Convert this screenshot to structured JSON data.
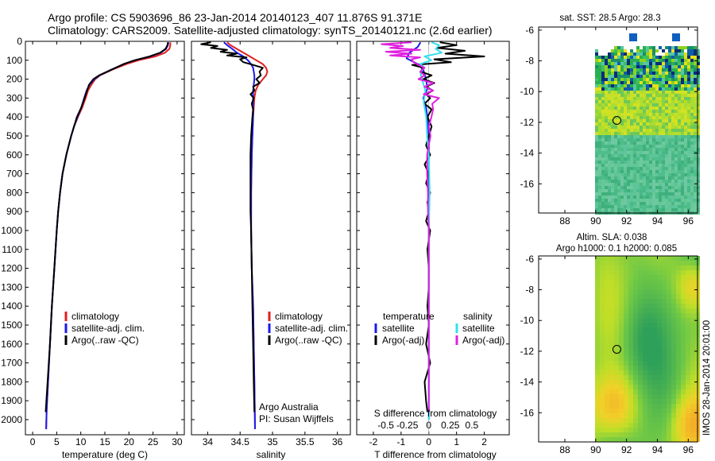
{
  "figure": {
    "title_line1": "Argo profile: CS 5903696_86 23-Jan-2014 20140123_407 11.876S 91.371E",
    "title_line2": "Climatology: CARS2009. Satellite-adjusted climatology: synTS_20140121.nc (2.6d earlier)",
    "side_stamp": "IMOS 28-Jan-2014 20:01:00"
  },
  "colors": {
    "climatology": "#e02020",
    "satellite": "#1a1aee",
    "argo": "#000000",
    "sat_salinity": "#33e0f0",
    "argo_salinity_adj": "#e020e0"
  },
  "depth_axis": {
    "ticks": [
      0,
      100,
      200,
      300,
      400,
      500,
      600,
      700,
      800,
      900,
      1000,
      1100,
      1200,
      1300,
      1400,
      1500,
      1600,
      1700,
      1800,
      1900,
      2000
    ],
    "ylim": [
      0,
      2080
    ]
  },
  "chart_data": [
    {
      "type": "line",
      "id": "temperature",
      "title": "",
      "xlabel": "temperature (deg C)",
      "ylabel": "",
      "xlim": [
        -1.5,
        31.5
      ],
      "ylim": [
        0,
        2080
      ],
      "x_ticks": [
        0,
        5,
        10,
        15,
        20,
        25,
        30
      ],
      "x_tick_labels": [
        "0",
        "5",
        "10",
        "15",
        "20",
        "25",
        "30"
      ],
      "legend": [
        "climatology",
        "satellite-adj. clim.",
        "Argo(..raw -QC)"
      ],
      "series": [
        {
          "name": "climatology",
          "color_key": "climatology",
          "depth": [
            5,
            20,
            40,
            60,
            80,
            100,
            120,
            150,
            180,
            200,
            230,
            260,
            300,
            350,
            400,
            450,
            500,
            600,
            700,
            800,
            900,
            1000,
            1200,
            1400,
            1600,
            1800,
            1950,
            2050
          ],
          "values": [
            28.6,
            28.6,
            28.4,
            27.5,
            25.5,
            22,
            19.5,
            16.5,
            14,
            13,
            12.2,
            11.5,
            11,
            10.3,
            9.4,
            8.6,
            8,
            7,
            6.2,
            5.7,
            5.3,
            5,
            4.5,
            4,
            3.6,
            3.2,
            2.9,
            2.8
          ]
        },
        {
          "name": "satellite-adj. clim.",
          "color_key": "satellite",
          "depth": [
            5,
            20,
            40,
            60,
            80,
            100,
            120,
            150,
            180,
            200,
            230,
            260,
            300,
            350,
            400,
            450,
            500,
            600,
            700,
            800,
            900,
            1000,
            1200,
            1400,
            1600,
            1800,
            1950,
            2050
          ],
          "values": [
            28.2,
            28.1,
            27.7,
            26.6,
            24.4,
            21.2,
            18.9,
            16.3,
            13.9,
            12.8,
            11.8,
            11.2,
            10.7,
            10.1,
            9.3,
            8.6,
            8,
            7,
            6.2,
            5.7,
            5.3,
            5,
            4.5,
            4,
            3.6,
            3.2,
            2.9,
            2.8
          ]
        },
        {
          "name": "Argo",
          "color_key": "argo",
          "depth": [
            5,
            20,
            40,
            60,
            80,
            100,
            120,
            150,
            180,
            200,
            230,
            260,
            300,
            350,
            400,
            450,
            500,
            600,
            700,
            800,
            900,
            1000,
            1200,
            1400,
            1600,
            1800,
            1960
          ],
          "values": [
            28.1,
            28,
            27.6,
            26.5,
            24.3,
            21.2,
            18.9,
            16.4,
            13.8,
            12.6,
            11.7,
            11.3,
            10.8,
            10.1,
            9.2,
            8.6,
            8,
            7,
            6.2,
            5.7,
            5.3,
            5,
            4.5,
            4,
            3.6,
            3.1,
            2.7
          ]
        }
      ]
    },
    {
      "type": "line",
      "id": "salinity",
      "title": "",
      "xlabel": "salinity",
      "ylabel": "",
      "xlim": [
        33.75,
        36.2
      ],
      "ylim": [
        0,
        2080
      ],
      "x_ticks": [
        34,
        34.5,
        35,
        35.5,
        36
      ],
      "x_tick_labels": [
        "34",
        "34.5",
        "35",
        "35.5",
        "36"
      ],
      "legend": [
        "climatology",
        "satellite-adj. clim.",
        "Argo(..raw -QC)"
      ],
      "annotation_line1": "Argo Australia",
      "annotation_line2": "PI: Susan Wijffels",
      "series": [
        {
          "name": "climatology",
          "color_key": "climatology",
          "depth": [
            5,
            20,
            40,
            60,
            80,
            100,
            120,
            140,
            160,
            180,
            200,
            230,
            260,
            300,
            350,
            400,
            500,
            600,
            800,
            1000,
            1200,
            1400,
            1600,
            1800,
            2050
          ],
          "values": [
            34.3,
            34.35,
            34.45,
            34.55,
            34.65,
            34.75,
            34.85,
            34.9,
            34.92,
            34.9,
            34.85,
            34.78,
            34.74,
            34.72,
            34.71,
            34.7,
            34.69,
            34.68,
            34.67,
            34.67,
            34.68,
            34.7,
            34.71,
            34.72,
            34.73
          ]
        },
        {
          "name": "satellite-adj. clim.",
          "color_key": "satellite",
          "depth": [
            5,
            20,
            40,
            60,
            80,
            100,
            120,
            140,
            160,
            180,
            200,
            230,
            260,
            300,
            350,
            400,
            500,
            600,
            800,
            1000,
            1200,
            1400,
            1600,
            1800,
            2050
          ],
          "values": [
            34.25,
            34.3,
            34.38,
            34.45,
            34.55,
            34.62,
            34.67,
            34.7,
            34.71,
            34.72,
            34.72,
            34.71,
            34.7,
            34.7,
            34.7,
            34.7,
            34.69,
            34.68,
            34.67,
            34.67,
            34.68,
            34.7,
            34.71,
            34.72,
            34.73
          ]
        },
        {
          "name": "Argo",
          "color_key": "argo",
          "depth": [
            5,
            15,
            25,
            35,
            45,
            55,
            65,
            75,
            85,
            95,
            110,
            125,
            140,
            160,
            180,
            200,
            220,
            240,
            260,
            280,
            300,
            330,
            360,
            400,
            450,
            500,
            600,
            700,
            800,
            900,
            1000,
            1200,
            1400,
            1600,
            1800,
            1960
          ],
          "values": [
            34.05,
            33.9,
            34.15,
            34.05,
            34.3,
            34.2,
            34.45,
            34.3,
            34.6,
            34.5,
            34.55,
            34.7,
            34.85,
            34.8,
            34.82,
            34.75,
            34.8,
            34.7,
            34.72,
            34.66,
            34.71,
            34.68,
            34.7,
            34.69,
            34.68,
            34.67,
            34.66,
            34.66,
            34.66,
            34.66,
            34.67,
            34.68,
            34.69,
            34.7,
            34.71,
            34.72
          ]
        }
      ]
    },
    {
      "type": "line",
      "id": "difference",
      "title": "",
      "xlabel": "T difference from climatology",
      "xlabel_top": "S difference from climatology",
      "ylabel": "",
      "xlim": [
        -2.6,
        2.9
      ],
      "ylim": [
        0,
        2080
      ],
      "x_ticks": [
        -2,
        -1,
        0,
        1,
        2
      ],
      "x_tick_labels": [
        "-2",
        "-1",
        "0",
        "1",
        "2"
      ],
      "s_ticks": [
        -0.5,
        -0.25,
        0,
        0.25,
        0.5
      ],
      "s_tick_labels": [
        "-0.5",
        "-0.25",
        "0",
        "0.25",
        "0.5"
      ],
      "legend_temperature_header": "temperature",
      "legend_salinity_header": "salinity",
      "legend_temperature": [
        "satellite",
        "Argo(-adj)"
      ],
      "legend_salinity": [
        "satellite",
        "Argo(-adj)"
      ],
      "series": [
        {
          "name": "T satellite",
          "color_key": "satellite",
          "depth": [
            5,
            30,
            60,
            90,
            120,
            150,
            200,
            250,
            300,
            350,
            400,
            500,
            700,
            900,
            1200,
            1500,
            1800,
            2000
          ],
          "values": [
            -0.3,
            -0.4,
            -0.7,
            -0.8,
            -0.4,
            -0.2,
            -0.1,
            -0.05,
            -0.2,
            -0.1,
            -0.05,
            0,
            0,
            0,
            0,
            0,
            0,
            0
          ]
        },
        {
          "name": "T Argo(-adj)",
          "color_key": "argo",
          "depth": [
            5,
            20,
            35,
            50,
            65,
            80,
            95,
            110,
            125,
            140,
            160,
            180,
            200,
            220,
            240,
            260,
            280,
            300,
            330,
            360,
            400,
            450,
            500,
            550,
            600,
            650,
            700,
            750,
            800,
            850,
            900,
            950,
            1000,
            1100,
            1200,
            1300,
            1400,
            1500,
            1600,
            1700,
            1800,
            1900,
            1960
          ],
          "values": [
            0.4,
            1.0,
            0.3,
            1.3,
            0.6,
            2.0,
            0.2,
            0.8,
            -0.6,
            -0.2,
            -0.3,
            0.1,
            -0.2,
            0.2,
            -0.1,
            0.15,
            -0.1,
            0.05,
            -0.15,
            0.1,
            -0.05,
            0.1,
            0,
            -0.1,
            0.05,
            -0.15,
            0,
            -0.1,
            0.05,
            -0.05,
            0,
            -0.1,
            0.05,
            -0.05,
            0,
            0,
            -0.05,
            0,
            -0.1,
            0.05,
            -0.15,
            -0.1,
            -0.05
          ]
        },
        {
          "name": "S satellite",
          "color_key": "sat_salinity",
          "depth": [
            5,
            20,
            40,
            60,
            80,
            100,
            120,
            140,
            160,
            200,
            260,
            320,
            400,
            500,
            600,
            800,
            1000,
            1200,
            1400,
            1600,
            1800,
            2000
          ],
          "values": [
            0.03,
            0.12,
            0.08,
            0.15,
            -0.05,
            0.03,
            -0.1,
            -0.05,
            -0.1,
            -0.08,
            -0.04,
            -0.06,
            -0.03,
            -0.02,
            0,
            0.01,
            0,
            0,
            0,
            0,
            0,
            0
          ]
        },
        {
          "name": "S Argo(-adj)",
          "color_key": "argo_salinity_adj",
          "depth": [
            5,
            15,
            25,
            35,
            45,
            55,
            65,
            75,
            85,
            95,
            110,
            125,
            140,
            160,
            180,
            200,
            220,
            240,
            260,
            280,
            300,
            330,
            360,
            400,
            450,
            500,
            600,
            700,
            800,
            900,
            1000,
            1200,
            1400,
            1600,
            1800,
            1960
          ],
          "values": [
            -0.2,
            -0.55,
            -0.3,
            -0.45,
            -0.1,
            -0.5,
            -0.2,
            -0.45,
            -0.1,
            -0.2,
            -0.18,
            -0.12,
            -0.05,
            -0.1,
            -0.05,
            -0.12,
            0.05,
            -0.05,
            0.05,
            -0.06,
            0.12,
            0.04,
            0.05,
            0.03,
            0.0,
            0.02,
            -0.02,
            -0.02,
            -0.01,
            -0.01,
            0,
            0,
            0,
            0,
            0,
            0
          ]
        }
      ]
    },
    {
      "type": "heatmap",
      "id": "sst_map",
      "title": "sat. SST: 28.5 Argo: 28.3",
      "xlim": [
        86.3,
        96.6
      ],
      "ylim": [
        -17.9,
        -5.8
      ],
      "x_ticks": [
        88,
        90,
        92,
        94,
        96
      ],
      "y_ticks": [
        -6,
        -8,
        -10,
        -12,
        -14,
        -16
      ],
      "data_extent_lon": [
        90,
        96.6
      ],
      "argo_marker": {
        "lon": 91.371,
        "lat": -11.876
      }
    },
    {
      "type": "heatmap",
      "id": "sla_map",
      "title_line1": "Altim. SLA: 0.038",
      "title_line2": "Argo h1000: 0.1 h2000: 0.085",
      "xlim": [
        86.3,
        96.6
      ],
      "ylim": [
        -17.9,
        -5.8
      ],
      "x_ticks": [
        88,
        90,
        92,
        94,
        96
      ],
      "y_ticks": [
        -6,
        -8,
        -10,
        -12,
        -14,
        -16
      ],
      "data_extent_lon": [
        90,
        96.6
      ],
      "argo_marker": {
        "lon": 91.371,
        "lat": -11.876
      }
    }
  ]
}
